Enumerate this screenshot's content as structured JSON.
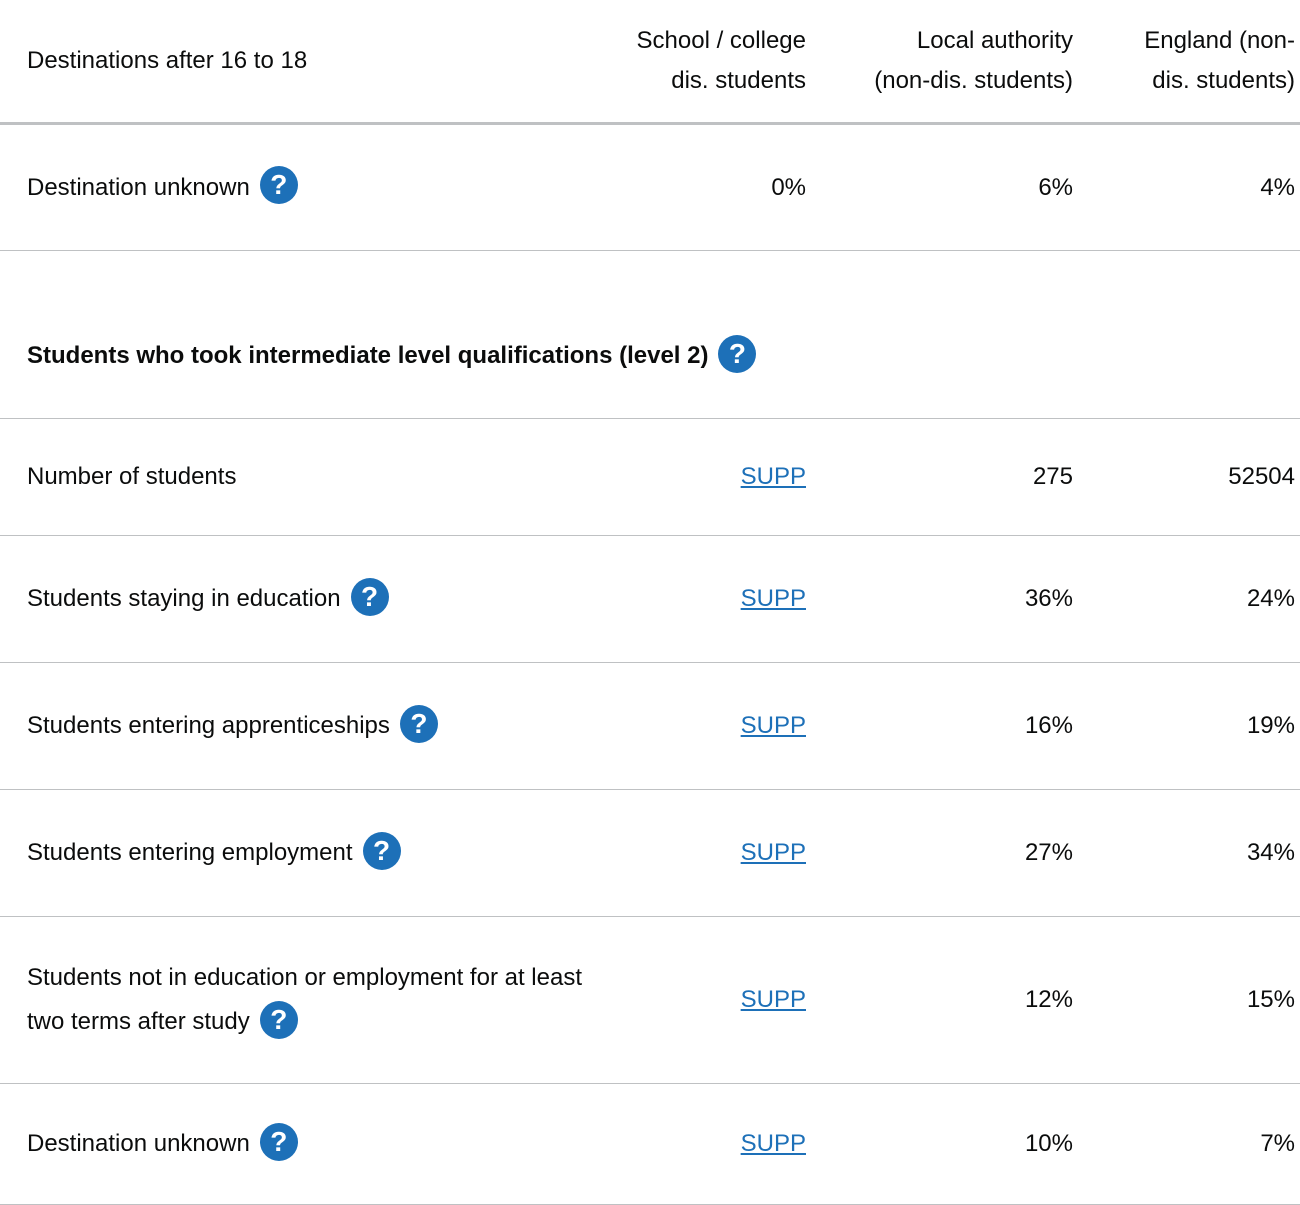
{
  "header": {
    "label": "Destinations after 16 to 18",
    "columns": [
      [
        "School / college",
        "dis. students"
      ],
      [
        "Local authority",
        "(non-dis. students)"
      ],
      [
        "England (non-",
        "dis. students)"
      ]
    ]
  },
  "sections": [
    {
      "rows": [
        {
          "label": "Destination unknown",
          "help": true,
          "values": [
            "0%",
            "6%",
            "4%"
          ]
        }
      ]
    },
    {
      "heading": "Students who took intermediate level qualifications (level 2)",
      "help": true,
      "rows": [
        {
          "label": "Number of students",
          "help": false,
          "values": [
            "SUPP",
            275,
            52504
          ]
        },
        {
          "label": "Students staying in education",
          "help": true,
          "values": [
            "SUPP",
            "36%",
            "24%"
          ]
        },
        {
          "label": "Students entering apprenticeships",
          "help": true,
          "values": [
            "SUPP",
            "16%",
            "19%"
          ]
        },
        {
          "label": "Students entering employment",
          "help": true,
          "values": [
            "SUPP",
            "27%",
            "34%"
          ]
        },
        {
          "label": "Students not in education or employment for at least two terms after study",
          "help": true,
          "values": [
            "SUPP",
            "12%",
            "15%"
          ]
        },
        {
          "label": "Destination unknown",
          "help": true,
          "values": [
            "SUPP",
            "10%",
            "7%"
          ]
        }
      ]
    }
  ]
}
